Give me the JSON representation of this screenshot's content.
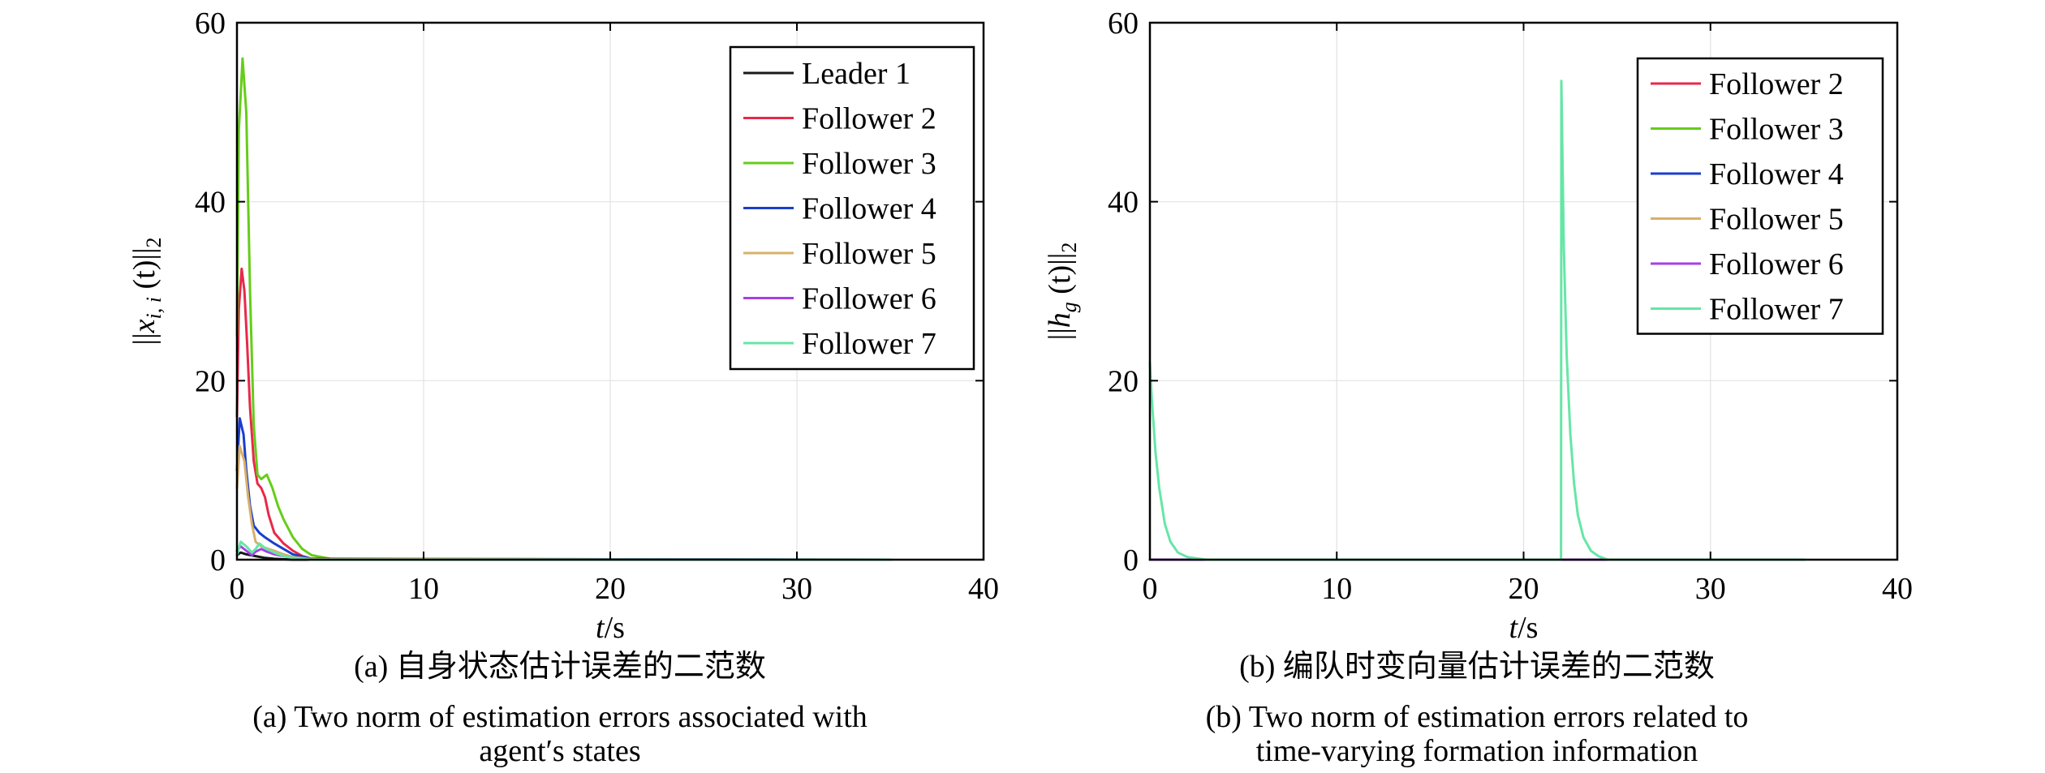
{
  "colors": {
    "Leader 1": "#1a1a1a",
    "Follower 2": "#e8294a",
    "Follower 3": "#66cc1a",
    "Follower 4": "#1a3fcc",
    "Follower 5": "#d8b06a",
    "Follower 6": "#a640e6",
    "Follower 7": "#66e6a6"
  },
  "chart_data": [
    {
      "type": "line",
      "title": "",
      "xlabel": "t/s",
      "ylabel": "||x_i,i (t)||_2",
      "ylabel_parts": {
        "main": "x",
        "sub": "i, i",
        "arg": " (t)",
        "norm_sub": "2"
      },
      "xlim": [
        0,
        40
      ],
      "ylim": [
        0,
        60
      ],
      "xticks": [
        0,
        10,
        20,
        30,
        40
      ],
      "yticks": [
        0,
        20,
        40,
        60
      ],
      "grid": true,
      "legend_position": "top-right",
      "caption_cn": "(a) 自身状态估计误差的二范数",
      "caption_en": [
        "(a) Two norm of estimation errors associated with",
        "agent′s states"
      ],
      "series": [
        {
          "name": "Leader 1",
          "x": [
            0,
            0.2,
            0.5,
            1,
            1.5,
            2,
            3,
            35
          ],
          "y": [
            0.5,
            0.8,
            0.6,
            0.4,
            0.2,
            0.1,
            0,
            0
          ]
        },
        {
          "name": "Follower 2",
          "x": [
            0,
            0.1,
            0.25,
            0.4,
            0.55,
            0.7,
            0.9,
            1.1,
            1.3,
            1.5,
            1.7,
            2,
            2.5,
            3,
            3.5,
            4,
            5,
            35
          ],
          "y": [
            16,
            28,
            32.5,
            30,
            24,
            17,
            11,
            8.5,
            8,
            7,
            5,
            3,
            1.8,
            1,
            0.4,
            0.1,
            0,
            0
          ]
        },
        {
          "name": "Follower 3",
          "x": [
            0,
            0.1,
            0.3,
            0.5,
            0.7,
            0.9,
            1.1,
            1.3,
            1.6,
            1.9,
            2.2,
            2.5,
            3,
            3.5,
            4,
            5,
            6,
            35
          ],
          "y": [
            25,
            48,
            56,
            50,
            30,
            15,
            9.5,
            9,
            9.5,
            8,
            6,
            4.5,
            2.5,
            1.2,
            0.5,
            0.1,
            0,
            0
          ]
        },
        {
          "name": "Follower 4",
          "x": [
            0,
            0.15,
            0.35,
            0.5,
            0.7,
            0.9,
            1.2,
            1.5,
            2,
            2.5,
            3,
            4,
            35
          ],
          "y": [
            10,
            15.8,
            14,
            10,
            6,
            3.8,
            3,
            2.5,
            1.8,
            1.2,
            0.6,
            0.1,
            0
          ]
        },
        {
          "name": "Follower 5",
          "x": [
            0,
            0.15,
            0.4,
            0.6,
            0.8,
            1,
            1.3,
            1.7,
            2,
            2.5,
            3,
            4,
            35
          ],
          "y": [
            8,
            12.7,
            11,
            7,
            4,
            2,
            1.5,
            1.2,
            1,
            0.6,
            0.3,
            0.05,
            0
          ]
        },
        {
          "name": "Follower 6",
          "x": [
            0,
            0.2,
            0.5,
            0.8,
            1,
            1.3,
            1.6,
            2,
            2.5,
            3,
            4,
            35
          ],
          "y": [
            1,
            1.5,
            1,
            0.5,
            0.9,
            1.2,
            0.9,
            0.6,
            0.4,
            0.2,
            0,
            0
          ]
        },
        {
          "name": "Follower 7",
          "x": [
            0,
            0.2,
            0.5,
            0.8,
            1,
            1.2,
            1.5,
            2,
            2.5,
            3,
            4,
            35
          ],
          "y": [
            0.5,
            2,
            1.5,
            0.8,
            1.2,
            1.8,
            1.3,
            0.8,
            0.4,
            0.2,
            0,
            0
          ]
        }
      ]
    },
    {
      "type": "line",
      "title": "",
      "xlabel": "t/s",
      "ylabel": "||h_g (t)||_2",
      "ylabel_parts": {
        "main": "h",
        "sub": "g",
        "arg": " (t)",
        "norm_sub": "2"
      },
      "xlim": [
        0,
        40
      ],
      "ylim": [
        0,
        60
      ],
      "xticks": [
        0,
        10,
        20,
        30,
        40
      ],
      "yticks": [
        0,
        20,
        40,
        60
      ],
      "grid": true,
      "legend_position": "top-right",
      "caption_cn": "(b) 编队时变向量估计误差的二范数",
      "caption_en": [
        "(b) Two norm of estimation errors related to",
        "time-varying formation information"
      ],
      "series": [
        {
          "name": "Follower 2",
          "x": [
            0,
            35
          ],
          "y": [
            0,
            0
          ]
        },
        {
          "name": "Follower 3",
          "x": [
            0,
            35
          ],
          "y": [
            0,
            0
          ]
        },
        {
          "name": "Follower 4",
          "x": [
            0,
            35
          ],
          "y": [
            0,
            0
          ]
        },
        {
          "name": "Follower 5",
          "x": [
            0,
            35
          ],
          "y": [
            0,
            0
          ]
        },
        {
          "name": "Follower 6",
          "x": [
            0,
            35
          ],
          "y": [
            0,
            0
          ]
        },
        {
          "name": "Follower 7",
          "x": [
            0,
            0.1,
            0.3,
            0.5,
            0.8,
            1.1,
            1.5,
            2,
            3,
            22,
            22.02,
            22.15,
            22.3,
            22.5,
            22.7,
            22.9,
            23.2,
            23.6,
            24,
            24.5,
            35
          ],
          "y": [
            22,
            18,
            12,
            8,
            4,
            2,
            0.8,
            0.3,
            0,
            0,
            53.5,
            35,
            23,
            14,
            8.5,
            5,
            2.5,
            1,
            0.4,
            0,
            0
          ]
        }
      ]
    }
  ]
}
